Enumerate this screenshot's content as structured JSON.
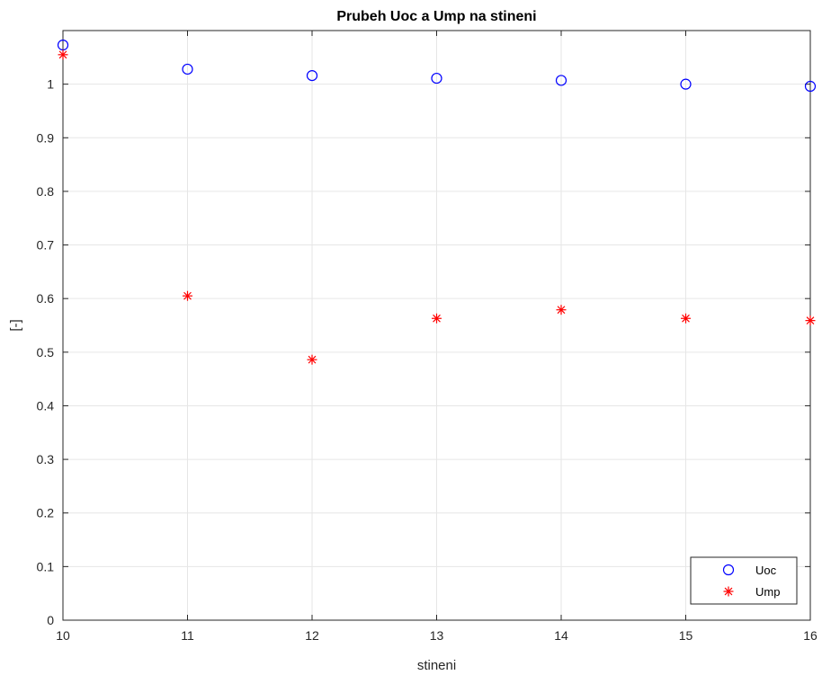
{
  "chart_data": {
    "type": "scatter",
    "title": "Prubeh Uoc a Ump na stineni",
    "xlabel": "stineni",
    "ylabel": "[-]",
    "xlim": [
      10,
      16
    ],
    "ylim": [
      0,
      1.1
    ],
    "xticks": [
      10,
      11,
      12,
      13,
      14,
      15,
      16
    ],
    "yticks": [
      0,
      0.1,
      0.2,
      0.3,
      0.4,
      0.5,
      0.6,
      0.7,
      0.8,
      0.9,
      1
    ],
    "grid": true,
    "legend_position": "bottom-right",
    "series": [
      {
        "name": "Uoc",
        "marker": "circle",
        "color": "#0000ff",
        "x": [
          10,
          11,
          12,
          13,
          14,
          15,
          16
        ],
        "y": [
          1.073,
          1.028,
          1.016,
          1.011,
          1.007,
          1.0,
          0.996
        ]
      },
      {
        "name": "Ump",
        "marker": "asterisk",
        "color": "#ff0000",
        "x": [
          10,
          11,
          12,
          13,
          14,
          15,
          16
        ],
        "y": [
          1.055,
          0.605,
          0.486,
          0.563,
          0.579,
          0.563,
          0.559
        ]
      }
    ]
  }
}
